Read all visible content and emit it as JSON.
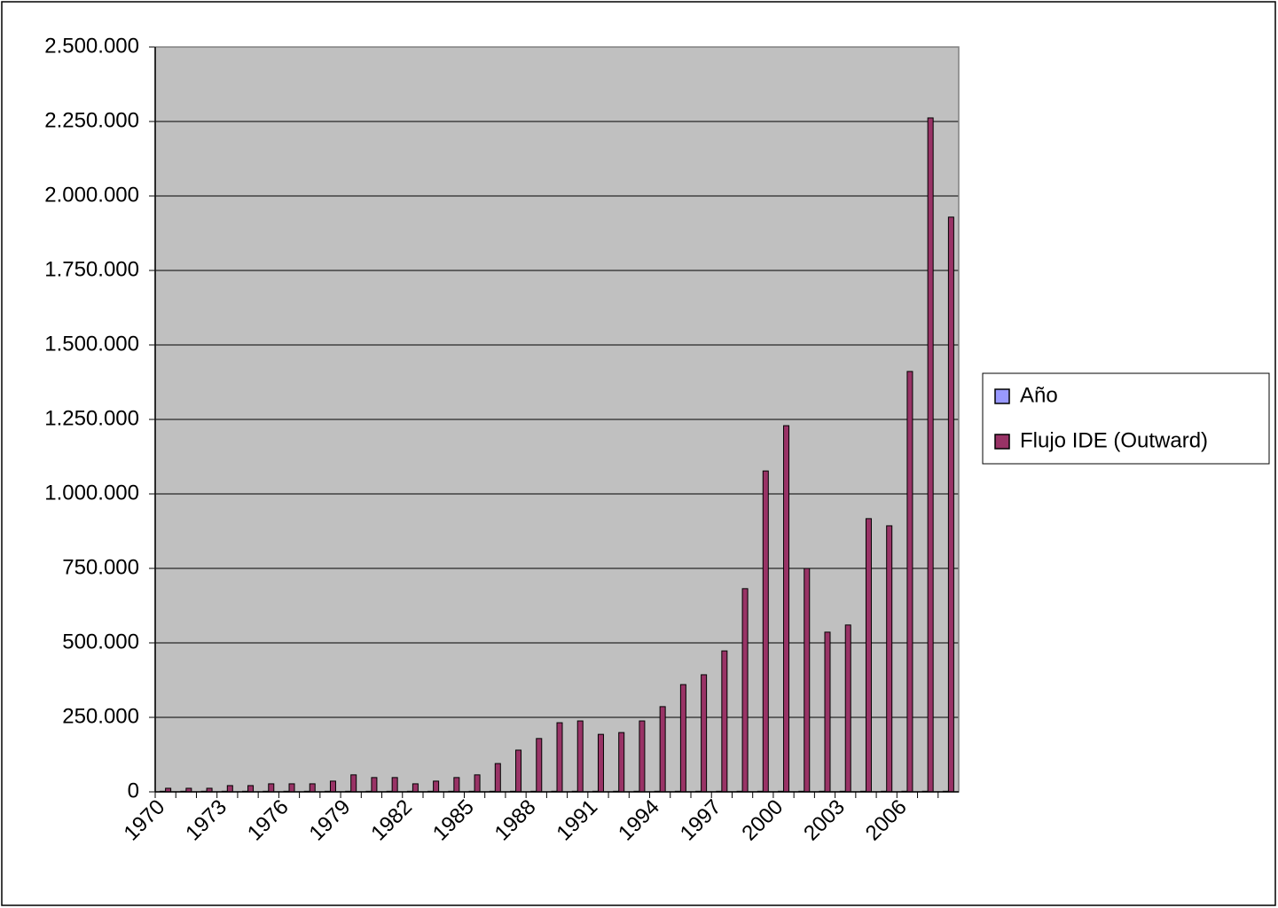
{
  "chart_data": {
    "type": "bar",
    "categories": [
      "1970",
      null,
      null,
      "1973",
      null,
      null,
      "1976",
      null,
      null,
      "1979",
      null,
      null,
      "1982",
      null,
      null,
      "1985",
      null,
      null,
      "1988",
      null,
      null,
      "1991",
      null,
      null,
      "1994",
      null,
      null,
      "1997",
      null,
      null,
      "2000",
      null,
      null,
      "2003",
      null,
      null,
      "2006",
      null,
      null
    ],
    "series": [
      {
        "name": "Año",
        "color": "#9999ff",
        "values": [
          1970,
          1971,
          1972,
          1973,
          1974,
          1975,
          1976,
          1977,
          1978,
          1979,
          1980,
          1981,
          1982,
          1983,
          1984,
          1985,
          1986,
          1987,
          1988,
          1989,
          1990,
          1991,
          1992,
          1993,
          1994,
          1995,
          1996,
          1997,
          1998,
          1999,
          2000,
          2001,
          2002,
          2003,
          2004,
          2005,
          2006,
          2007,
          2008
        ]
      },
      {
        "name": "Flujo IDE (Outward)",
        "color": "#993366",
        "values": [
          12000,
          12000,
          12000,
          21000,
          21000,
          27000,
          27000,
          27000,
          36000,
          57000,
          48000,
          48000,
          27000,
          36000,
          48000,
          57000,
          95000,
          140000,
          179000,
          232000,
          238000,
          193000,
          199000,
          238000,
          286000,
          360000,
          393000,
          473000,
          682000,
          1077000,
          1229000,
          750000,
          536000,
          560000,
          917000,
          893000,
          1411000,
          2262000,
          1929000
        ]
      }
    ],
    "ylim": [
      0,
      2500000
    ],
    "yticks": [
      0,
      {
        "value": 250000,
        "label": "250.000"
      },
      {
        "value": 500000,
        "label": "500.000"
      },
      {
        "value": 750000,
        "label": "750.000"
      },
      {
        "value": 1000000,
        "label": "1.000.000"
      },
      {
        "value": 1250000,
        "label": "1.250.000"
      },
      {
        "value": 1500000,
        "label": "1.500.000"
      },
      {
        "value": 1750000,
        "label": "1.750.000"
      },
      {
        "value": 2000000,
        "label": "2.000.000"
      },
      {
        "value": 2250000,
        "label": "2.250.000"
      },
      {
        "value": 2500000,
        "label": "2.500.000"
      }
    ],
    "grid": true,
    "legend": "right",
    "plot_background": "#c0c0c0"
  }
}
